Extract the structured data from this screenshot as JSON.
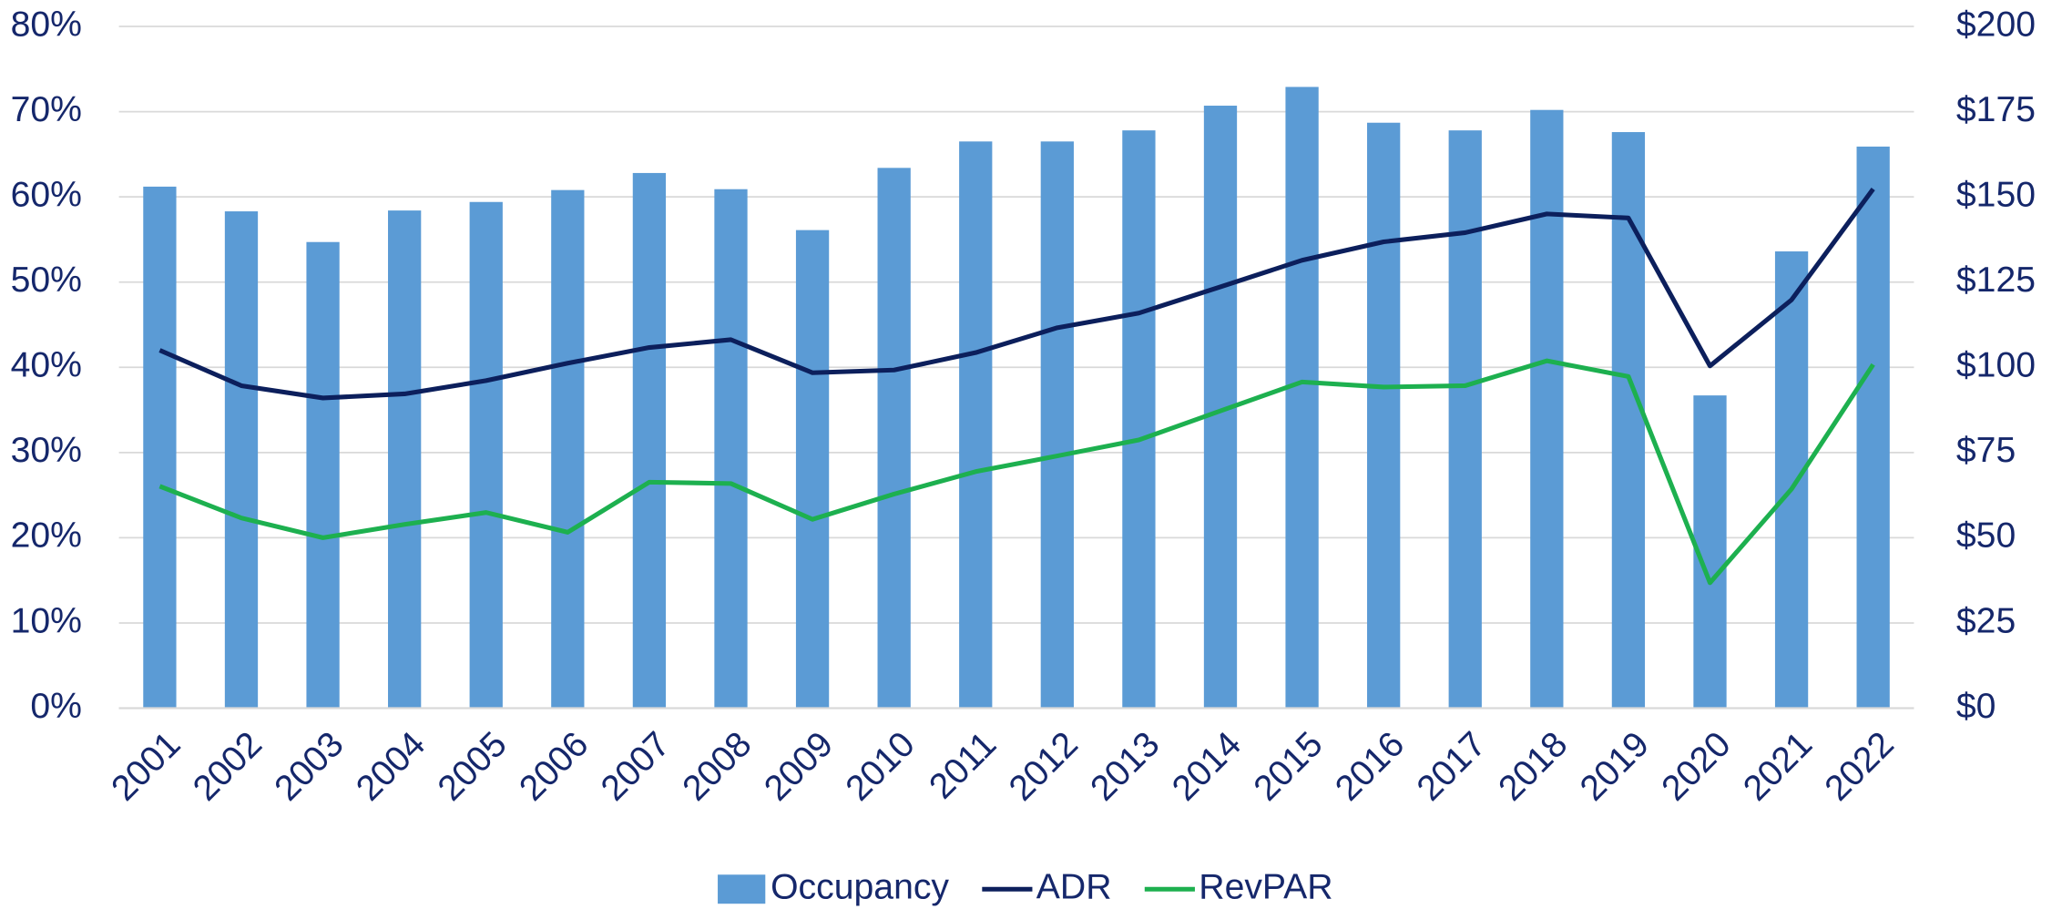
{
  "chart_data": {
    "type": "combo",
    "categories": [
      "2001",
      "2002",
      "2003",
      "2004",
      "2005",
      "2006",
      "2007",
      "2008",
      "2009",
      "2010",
      "2011",
      "2012",
      "2013",
      "2014",
      "2015",
      "2016",
      "2017",
      "2018",
      "2019",
      "2020",
      "2021",
      "2022"
    ],
    "series": [
      {
        "name": "Occupancy",
        "type": "bar",
        "color": "#5b9bd5",
        "axis": "y",
        "values": [
          61.2,
          58.3,
          54.7,
          58.4,
          59.4,
          60.8,
          62.8,
          60.9,
          56.1,
          63.4,
          66.5,
          66.5,
          67.8,
          70.7,
          72.9,
          68.7,
          67.8,
          70.2,
          67.6,
          36.7,
          53.6,
          65.9
        ]
      },
      {
        "name": "ADR",
        "type": "line",
        "color": "#0c1f5c",
        "axis": "y2",
        "values": [
          105,
          94.6,
          91,
          92.2,
          96.1,
          101.2,
          105.8,
          108.1,
          98.4,
          99.2,
          104.3,
          111.6,
          115.9,
          123.6,
          131.4,
          136.8,
          139.5,
          145,
          143.8,
          100.4,
          119.8,
          152.3
        ]
      },
      {
        "name": "RevPAR",
        "type": "line",
        "color": "#1db04f",
        "axis": "y2",
        "values": [
          65.1,
          55.8,
          50,
          53.9,
          57.4,
          51.6,
          66.3,
          65.9,
          55.4,
          62.8,
          69.4,
          74,
          78.7,
          87.2,
          95.7,
          94.2,
          94.6,
          101.9,
          97.3,
          36.8,
          64.3,
          100.8
        ]
      }
    ],
    "ylim": [
      0,
      80
    ],
    "yticks": [
      {
        "value": 0,
        "label": "0%"
      },
      {
        "value": 10,
        "label": "10%"
      },
      {
        "value": 20,
        "label": "20%"
      },
      {
        "value": 30,
        "label": "30%"
      },
      {
        "value": 40,
        "label": "40%"
      },
      {
        "value": 50,
        "label": "50%"
      },
      {
        "value": 60,
        "label": "60%"
      },
      {
        "value": 70,
        "label": "70%"
      },
      {
        "value": 80,
        "label": "80%"
      }
    ],
    "y2lim": [
      0,
      200
    ],
    "y2ticks": [
      {
        "value": 0,
        "label": "$0"
      },
      {
        "value": 25,
        "label": "$25"
      },
      {
        "value": 50,
        "label": "$50"
      },
      {
        "value": 75,
        "label": "$75"
      },
      {
        "value": 100,
        "label": "$100"
      },
      {
        "value": 125,
        "label": "$125"
      },
      {
        "value": 150,
        "label": "$150"
      },
      {
        "value": 175,
        "label": "$175"
      },
      {
        "value": 200,
        "label": "$200"
      }
    ],
    "grid": true,
    "legend": "bottom"
  }
}
